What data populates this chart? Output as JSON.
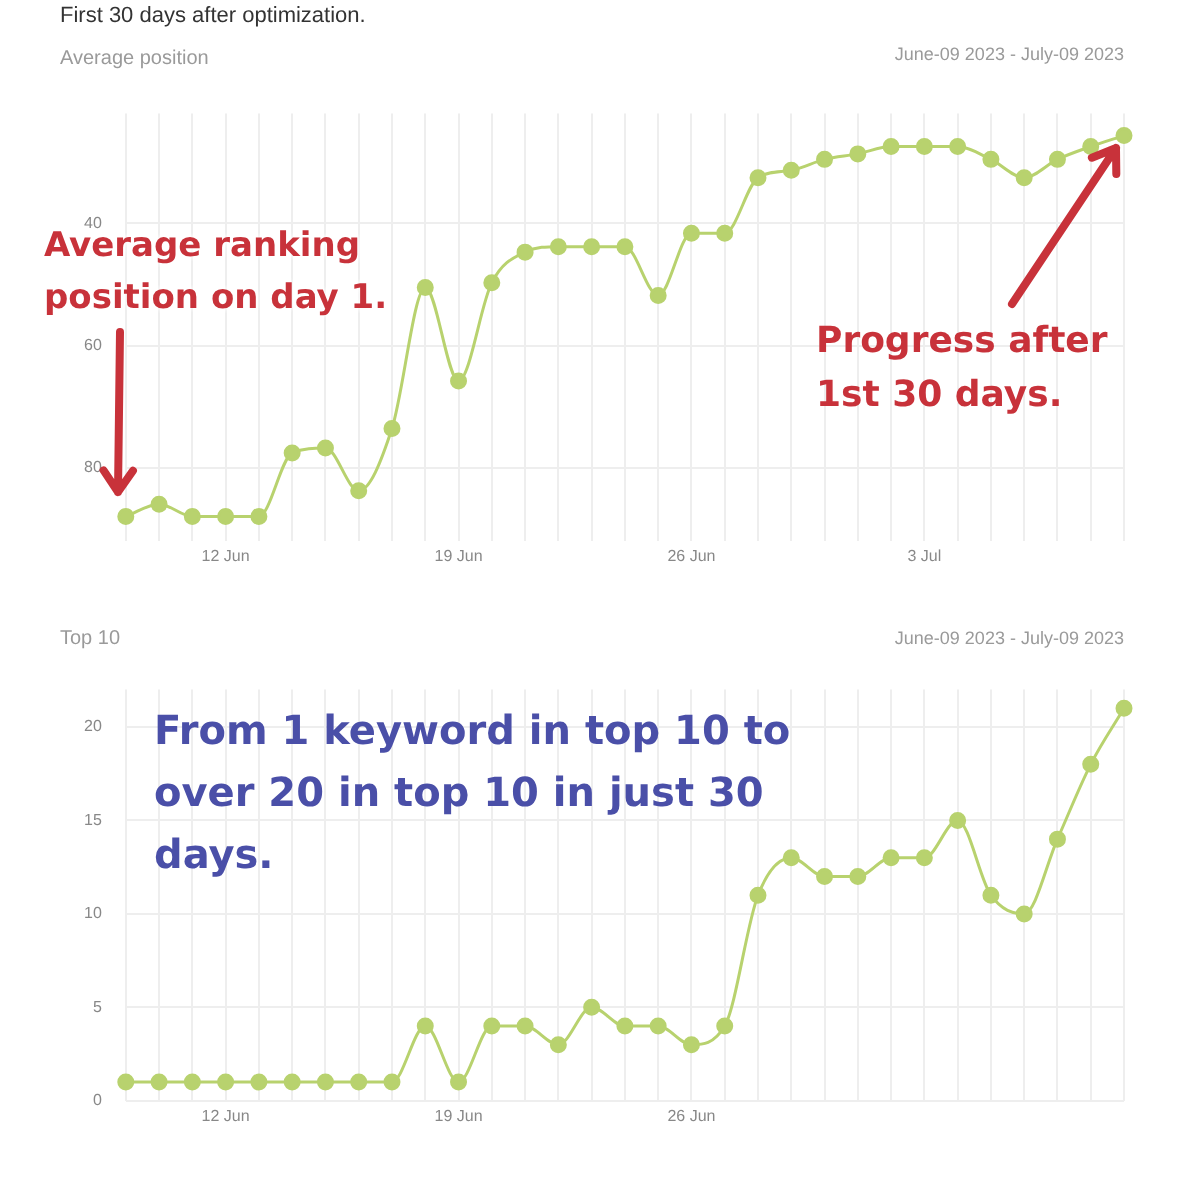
{
  "chart_data": [
    {
      "type": "line",
      "title": "First 30 days after optimization.",
      "subtitle": "Average position",
      "annotations": [
        "June-09 2023 - July-09 2023",
        "Average ranking position on day 1.",
        {
          "text": "Progress after 1st 30 days.",
          "x": "2023-07-09",
          "y": 25.6
        }
      ],
      "x": [
        "2023-06-09",
        "2023-06-10",
        "2023-06-11",
        "2023-06-12",
        "2023-06-13",
        "2023-06-14",
        "2023-06-15",
        "2023-06-16",
        "2023-06-17",
        "2023-06-18",
        "2023-06-19",
        "2023-06-20",
        "2023-06-21",
        "2023-06-22",
        "2023-06-23",
        "2023-06-24",
        "2023-06-25",
        "2023-06-26",
        "2023-06-27",
        "2023-06-28",
        "2023-06-29",
        "2023-06-30",
        "2023-07-01",
        "2023-07-02",
        "2023-07-03",
        "2023-07-04",
        "2023-07-05",
        "2023-07-06",
        "2023-07-07",
        "2023-07-08",
        "2023-07-09"
      ],
      "series": [
        {
          "color": "#b8d26e",
          "values": [
            88,
            86,
            88,
            88,
            88,
            77.6,
            76.8,
            83.8,
            73.6,
            50.5,
            65.8,
            49.7,
            44.7,
            43.8,
            43.8,
            43.8,
            51.8,
            41.6,
            41.6,
            32.5,
            31.3,
            29.5,
            28.6,
            27.4,
            27.4,
            27.4,
            29.5,
            32.5,
            29.5,
            27.4,
            25.6
          ]
        }
      ],
      "xlim": [
        "2023-06-09",
        "2023-07-09"
      ],
      "xticks": [
        {
          "value": "2023-06-09",
          "label": null
        },
        {
          "value": "2023-06-10",
          "label": null
        },
        {
          "value": "2023-06-11",
          "label": null
        },
        {
          "value": "2023-06-12",
          "label": "12 Jun"
        },
        {
          "value": "2023-06-13",
          "label": null
        },
        {
          "value": "2023-06-14",
          "label": null
        },
        {
          "value": "2023-06-15",
          "label": null
        },
        {
          "value": "2023-06-16",
          "label": null
        },
        {
          "value": "2023-06-17",
          "label": null
        },
        {
          "value": "2023-06-18",
          "label": null
        },
        {
          "value": "2023-06-19",
          "label": "19 Jun"
        },
        {
          "value": "2023-06-20",
          "label": null
        },
        {
          "value": "2023-06-21",
          "label": null
        },
        {
          "value": "2023-06-22",
          "label": null
        },
        {
          "value": "2023-06-23",
          "label": null
        },
        {
          "value": "2023-06-24",
          "label": null
        },
        {
          "value": "2023-06-25",
          "label": null
        },
        {
          "value": "2023-06-26",
          "label": "26 Jun"
        },
        {
          "value": "2023-06-27",
          "label": null
        },
        {
          "value": "2023-06-28",
          "label": null
        },
        {
          "value": "2023-06-29",
          "label": null
        },
        {
          "value": "2023-06-30",
          "label": null
        },
        {
          "value": "2023-07-01",
          "label": null
        },
        {
          "value": "2023-07-02",
          "label": null
        },
        {
          "value": "2023-07-03",
          "label": "3 Jul"
        },
        {
          "value": "2023-07-04",
          "label": null
        },
        {
          "value": "2023-07-05",
          "label": null
        },
        {
          "value": "2023-07-06",
          "label": null
        },
        {
          "value": "2023-07-07",
          "label": null
        },
        {
          "value": "2023-07-08",
          "label": null
        },
        {
          "value": "2023-07-09",
          "label": null
        }
      ],
      "ylim": [
        92,
        22
      ],
      "yticks": [
        40,
        60,
        80
      ],
      "grid": true,
      "marker": "circle"
    },
    {
      "type": "line",
      "title": "Top 10",
      "annotations": [
        "June-09 2023 - July-09 2023",
        "From 1 keyword in top 10 to over 20 in top 10 in just 30 days."
      ],
      "x": [
        "2023-06-09",
        "2023-06-10",
        "2023-06-11",
        "2023-06-12",
        "2023-06-13",
        "2023-06-14",
        "2023-06-15",
        "2023-06-16",
        "2023-06-17",
        "2023-06-18",
        "2023-06-19",
        "2023-06-20",
        "2023-06-21",
        "2023-06-22",
        "2023-06-23",
        "2023-06-24",
        "2023-06-25",
        "2023-06-26",
        "2023-06-27",
        "2023-06-28",
        "2023-06-29",
        "2023-06-30",
        "2023-07-01",
        "2023-07-02",
        "2023-07-03",
        "2023-07-04",
        "2023-07-05",
        "2023-07-06",
        "2023-07-07",
        "2023-07-08",
        "2023-07-09"
      ],
      "series": [
        {
          "color": "#b8d26e",
          "values": [
            1,
            1,
            1,
            1,
            1,
            1,
            1,
            1,
            1,
            4,
            1,
            4,
            4,
            3,
            5,
            4,
            4,
            3,
            4,
            11,
            13,
            12,
            12,
            13,
            13,
            15,
            11,
            10,
            14,
            18,
            21
          ]
        }
      ],
      "xlim": [
        "2023-06-09",
        "2023-07-09"
      ],
      "xticks": [
        {
          "value": "2023-06-09",
          "label": null
        },
        {
          "value": "2023-06-10",
          "label": null
        },
        {
          "value": "2023-06-11",
          "label": null
        },
        {
          "value": "2023-06-12",
          "label": "12 Jun"
        },
        {
          "value": "2023-06-13",
          "label": null
        },
        {
          "value": "2023-06-14",
          "label": null
        },
        {
          "value": "2023-06-15",
          "label": null
        },
        {
          "value": "2023-06-16",
          "label": null
        },
        {
          "value": "2023-06-17",
          "label": null
        },
        {
          "value": "2023-06-18",
          "label": null
        },
        {
          "value": "2023-06-19",
          "label": "19 Jun"
        },
        {
          "value": "2023-06-20",
          "label": null
        },
        {
          "value": "2023-06-21",
          "label": null
        },
        {
          "value": "2023-06-22",
          "label": null
        },
        {
          "value": "2023-06-23",
          "label": null
        },
        {
          "value": "2023-06-24",
          "label": null
        },
        {
          "value": "2023-06-25",
          "label": null
        },
        {
          "value": "2023-06-26",
          "label": "26 Jun"
        },
        {
          "value": "2023-06-27",
          "label": null
        },
        {
          "value": "2023-06-28",
          "label": null
        },
        {
          "value": "2023-06-29",
          "label": null
        },
        {
          "value": "2023-06-30",
          "label": null
        },
        {
          "value": "2023-07-01",
          "label": null
        },
        {
          "value": "2023-07-02",
          "label": null
        },
        {
          "value": "2023-07-03",
          "label": null
        },
        {
          "value": "2023-07-04",
          "label": null
        },
        {
          "value": "2023-07-05",
          "label": null
        },
        {
          "value": "2023-07-06",
          "label": null
        },
        {
          "value": "2023-07-07",
          "label": null
        },
        {
          "value": "2023-07-08",
          "label": null
        },
        {
          "value": "2023-07-09",
          "label": null
        }
      ],
      "ylim": [
        0,
        22
      ],
      "yticks": [
        0,
        5,
        10,
        15,
        20
      ],
      "grid": true,
      "marker": "circle"
    }
  ]
}
